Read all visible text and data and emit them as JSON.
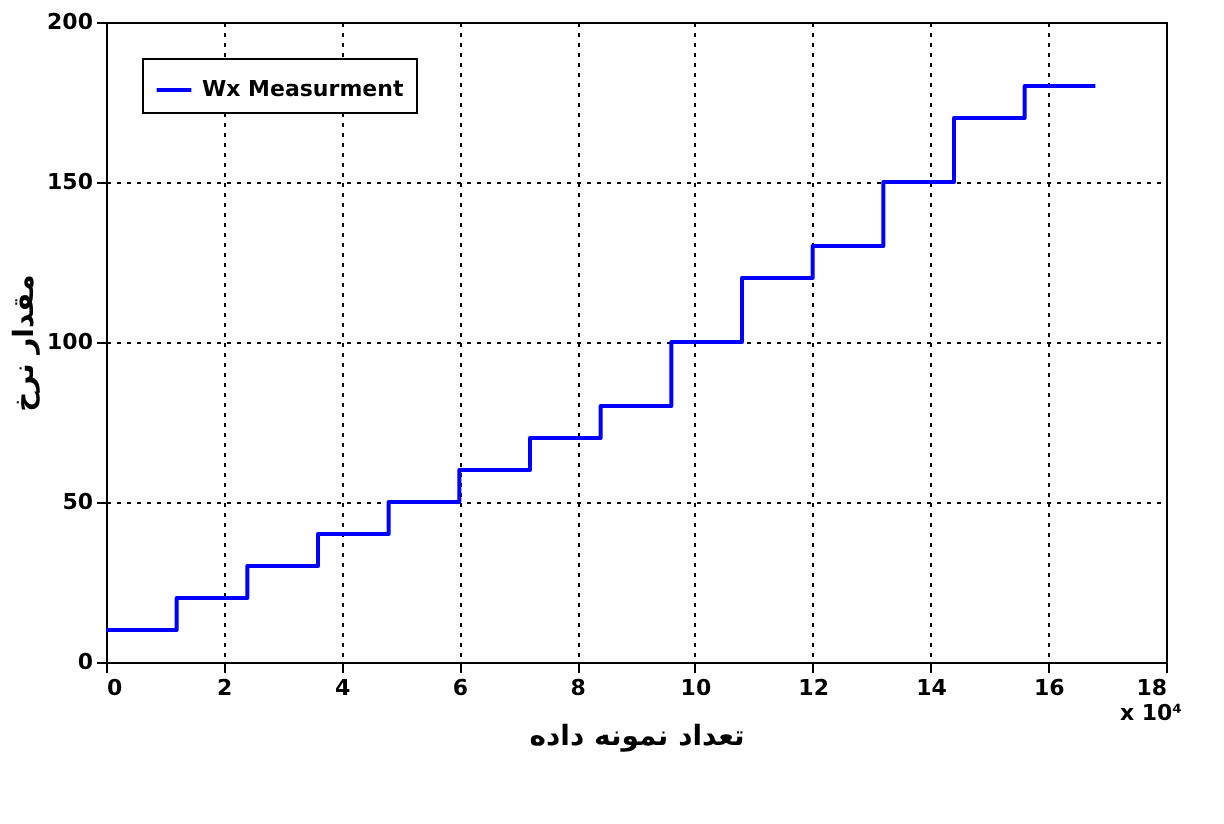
{
  "chart_data": {
    "type": "step",
    "xlabel": "تعداد نمونه داده",
    "ylabel": "مقدار نرخ",
    "annotations": [
      "x 10⁴"
    ],
    "x": [
      0,
      1.2,
      2.4,
      3.6,
      4.8,
      6.0,
      7.2,
      8.4,
      9.6,
      10.8,
      12.0,
      13.2,
      14.4,
      15.6,
      16.8
    ],
    "series": [
      {
        "name": "Wx Measurment",
        "color": "#0000ff",
        "values": [
          10,
          20,
          30,
          40,
          50,
          60,
          70,
          80,
          100,
          120,
          130,
          150,
          170,
          180,
          180
        ]
      }
    ],
    "xlim": [
      0,
      18
    ],
    "xticks": [
      0,
      2,
      4,
      6,
      8,
      10,
      12,
      14,
      16,
      18
    ],
    "ylim": [
      0,
      200
    ],
    "yticks": [
      0,
      50,
      100,
      150,
      200
    ],
    "grid": true,
    "legend": "top left",
    "line_style": "solid",
    "marker": "none"
  }
}
